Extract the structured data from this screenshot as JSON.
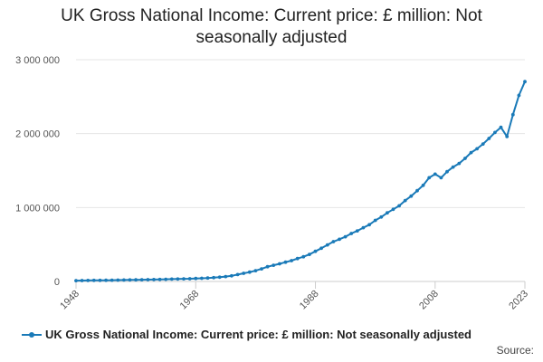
{
  "chart_data": {
    "type": "line",
    "title": "UK Gross National Income: Current price: £ million: Not seasonally adjusted",
    "xlabel": "",
    "ylabel": "",
    "x_ticks": [
      "1948",
      "1968",
      "1988",
      "2008",
      "2023"
    ],
    "y_ticks": [
      "0",
      "1 000 000",
      "2 000 000",
      "3 000 000"
    ],
    "ylim": [
      0,
      3000000
    ],
    "xlim": [
      1948,
      2023
    ],
    "grid": true,
    "legend_position": "bottom",
    "series": [
      {
        "name": "UK Gross National Income: Current price: £ million: Not seasonally adjusted",
        "color": "#1a7ab8",
        "x": [
          1948,
          1949,
          1950,
          1951,
          1952,
          1953,
          1954,
          1955,
          1956,
          1957,
          1958,
          1959,
          1960,
          1961,
          1962,
          1963,
          1964,
          1965,
          1966,
          1967,
          1968,
          1969,
          1970,
          1971,
          1972,
          1973,
          1974,
          1975,
          1976,
          1977,
          1978,
          1979,
          1980,
          1981,
          1982,
          1983,
          1984,
          1985,
          1986,
          1987,
          1988,
          1989,
          1990,
          1991,
          1992,
          1993,
          1994,
          1995,
          1996,
          1997,
          1998,
          1999,
          2000,
          2001,
          2002,
          2003,
          2004,
          2005,
          2006,
          2007,
          2008,
          2009,
          2010,
          2011,
          2012,
          2013,
          2014,
          2015,
          2016,
          2017,
          2018,
          2019,
          2020,
          2021,
          2022,
          2023
        ],
        "values": [
          11500,
          12100,
          12900,
          14300,
          15300,
          16300,
          17200,
          18400,
          19700,
          20800,
          21800,
          22900,
          24600,
          26200,
          27300,
          29000,
          31500,
          33600,
          35500,
          37300,
          39800,
          42400,
          46300,
          51800,
          57500,
          66300,
          75400,
          93400,
          110300,
          126100,
          145800,
          170200,
          199100,
          218900,
          239200,
          260500,
          282200,
          310100,
          334400,
          366400,
          407500,
          448900,
          494900,
          539000,
          570000,
          605400,
          648500,
          684300,
          727600,
          768300,
          826900,
          871400,
          927600,
          975500,
          1023700,
          1094700,
          1155300,
          1228300,
          1301000,
          1402900,
          1452200,
          1403800,
          1485200,
          1547600,
          1597000,
          1665900,
          1743300,
          1794800,
          1860500,
          1935200,
          2015800,
          2085500,
          1960500,
          2256700,
          2517500,
          2703400
        ]
      }
    ]
  },
  "source_label": "Source:"
}
